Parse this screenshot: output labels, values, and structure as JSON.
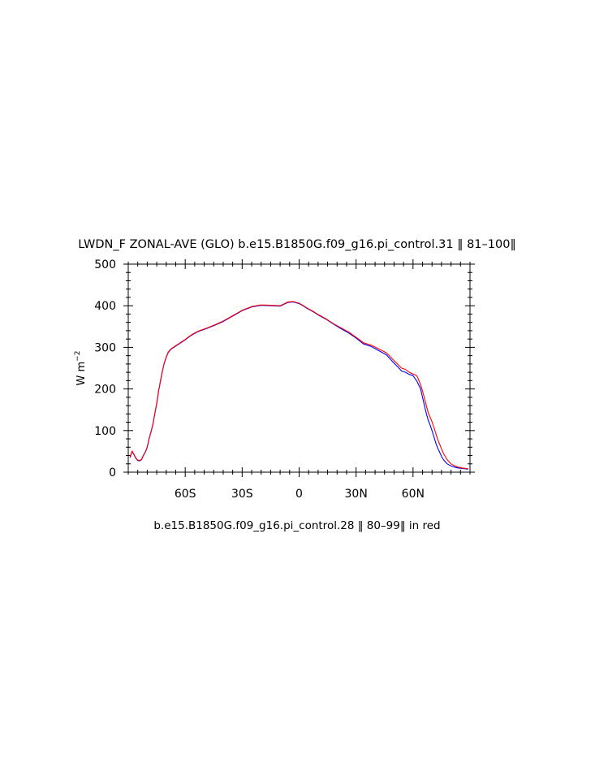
{
  "chart_data": {
    "type": "line",
    "title": "LWDN_F ZONAL-AVE (GLO) b.e15.B1850G.f09_g16.pi_control.31 ‖ 81–100‖",
    "subtitle": "b.e15.B1850G.f09_g16.pi_control.28 ‖ 80–99‖  in red",
    "ylabel": "W m",
    "ylabel_superscript": "−2",
    "xlim": [
      -90,
      90
    ],
    "ylim": [
      0,
      500
    ],
    "x_ticks": [
      -60,
      -30,
      0,
      30,
      60
    ],
    "x_tick_labels": [
      "60S",
      "30S",
      "0",
      "30N",
      "60N"
    ],
    "y_ticks": [
      0,
      100,
      200,
      300,
      400,
      500
    ],
    "y_tick_labels": [
      "0",
      "100",
      "200",
      "300",
      "400",
      "500"
    ],
    "series": [
      {
        "color": "#0000ff",
        "x": [
          -89,
          -88,
          -87,
          -86,
          -85,
          -84,
          -83,
          -82,
          -81,
          -80,
          -79,
          -78,
          -77,
          -76,
          -75,
          -74,
          -73,
          -72,
          -71,
          -70,
          -69,
          -68,
          -67,
          -66,
          -65,
          -64,
          -63,
          -62,
          -60,
          -58,
          -56,
          -54,
          -52,
          -50,
          -45,
          -40,
          -35,
          -30,
          -25,
          -20,
          -15,
          -10,
          -6,
          -3,
          0,
          2,
          4,
          6,
          8,
          10,
          14,
          18,
          22,
          26,
          30,
          34,
          38,
          42,
          46,
          50,
          52,
          54,
          56,
          58,
          60,
          62,
          64,
          65,
          66,
          67,
          68,
          69,
          70,
          71,
          72,
          73,
          74,
          75,
          76,
          78,
          80,
          82,
          84,
          86,
          88,
          89
        ],
        "y": [
          35,
          50,
          42,
          33,
          28,
          27,
          30,
          40,
          48,
          60,
          80,
          97,
          115,
          140,
          165,
          195,
          220,
          243,
          262,
          276,
          287,
          293,
          297,
          300,
          303,
          306,
          309,
          312,
          318,
          325,
          331,
          336,
          340,
          343,
          352,
          362,
          375,
          388,
          397,
          401,
          400,
          399,
          408,
          409,
          405,
          400,
          394,
          389,
          384,
          378,
          368,
          356,
          345,
          335,
          322,
          308,
          302,
          292,
          282,
          262,
          253,
          243,
          240,
          235,
          232,
          219,
          200,
          180,
          160,
          141,
          125,
          113,
          100,
          85,
          70,
          58,
          48,
          38,
          30,
          20,
          15,
          12,
          10,
          9,
          8,
          7
        ]
      },
      {
        "color": "#ff0000",
        "x": [
          -89,
          -88,
          -87,
          -86,
          -85,
          -84,
          -83,
          -82,
          -81,
          -80,
          -79,
          -78,
          -77,
          -76,
          -75,
          -74,
          -73,
          -72,
          -71,
          -70,
          -69,
          -68,
          -67,
          -66,
          -65,
          -64,
          -63,
          -62,
          -60,
          -58,
          -56,
          -54,
          -52,
          -50,
          -45,
          -40,
          -35,
          -30,
          -25,
          -20,
          -15,
          -10,
          -6,
          -3,
          0,
          2,
          4,
          6,
          8,
          10,
          14,
          18,
          22,
          26,
          30,
          34,
          38,
          42,
          46,
          50,
          52,
          54,
          56,
          58,
          60,
          62,
          64,
          65,
          66,
          67,
          68,
          69,
          70,
          71,
          72,
          73,
          74,
          75,
          76,
          78,
          80,
          82,
          84,
          86,
          88,
          89
        ],
        "y": [
          36,
          51,
          43,
          34,
          29,
          28,
          31,
          41,
          49,
          61,
          81,
          98,
          116,
          141,
          166,
          196,
          221,
          244,
          263,
          277,
          288,
          294,
          298,
          301,
          304,
          307,
          310,
          313,
          319,
          326,
          332,
          337,
          341,
          344,
          353,
          363,
          376,
          389,
          398,
          402,
          401,
          400,
          409,
          410,
          406,
          401,
          395,
          390,
          385,
          379,
          369,
          357,
          347,
          337,
          324,
          311,
          305,
          296,
          287,
          268,
          259,
          250,
          247,
          240,
          236,
          232,
          210,
          195,
          178,
          160,
          143,
          132,
          121,
          107,
          93,
          79,
          67,
          56,
          45,
          30,
          20,
          15,
          12,
          10,
          9,
          8
        ]
      }
    ]
  }
}
